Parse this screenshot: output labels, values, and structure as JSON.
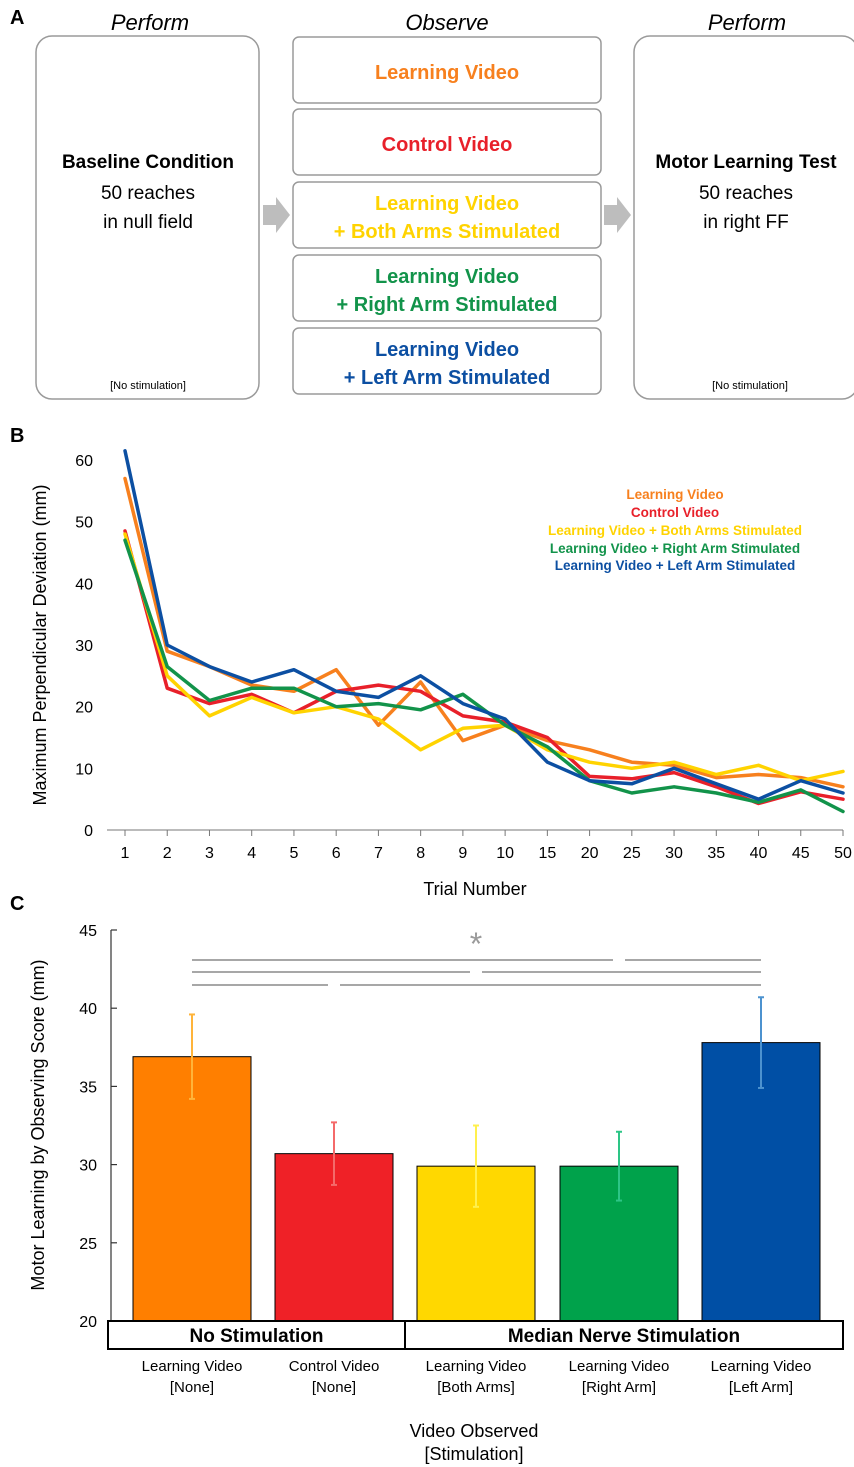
{
  "panels": {
    "a": {
      "letter": "A",
      "headers": [
        "Perform",
        "Observe",
        "Perform"
      ],
      "baseline": {
        "title": "Baseline Condition",
        "line1": "50 reaches",
        "line2": "in null field",
        "note": "[No stimulation]"
      },
      "test": {
        "title": "Motor Learning Test",
        "line1": "50 reaches",
        "line2": "in right FF",
        "note": "[No stimulation]"
      },
      "videos": [
        {
          "line1": "Learning Video",
          "line2": "",
          "color": "#F7801E"
        },
        {
          "line1": "Control Video",
          "line2": "",
          "color": "#E8202A"
        },
        {
          "line1": "Learning Video",
          "line2": "+ Both Arms Stimulated",
          "color": "#FFD300"
        },
        {
          "line1": "Learning Video",
          "line2": "+ Right Arm Stimulated",
          "color": "#12934A"
        },
        {
          "line1": "Learning Video",
          "line2": "+ Left Arm Stimulated",
          "color": "#0C4FA2"
        }
      ]
    },
    "b": {
      "letter": "B"
    },
    "c": {
      "letter": "C"
    }
  },
  "chart_data": [
    {
      "type": "line",
      "title": "",
      "xlabel": "Trial Number",
      "ylabel": "Maximum Perpendicular Deviation (mm)",
      "ylim": [
        0,
        60
      ],
      "yticks": [
        0,
        10,
        20,
        30,
        40,
        50,
        60
      ],
      "x": [
        "1",
        "2",
        "3",
        "4",
        "5",
        "6",
        "7",
        "8",
        "9",
        "10",
        "15",
        "20",
        "25",
        "30",
        "35",
        "40",
        "45",
        "50"
      ],
      "legend_position": "top-right",
      "grid": false,
      "series": [
        {
          "name": "Learning Video",
          "color": "#F7801E",
          "values": [
            57,
            29,
            26.5,
            23.5,
            22.5,
            26,
            17,
            24,
            14.5,
            17,
            14.5,
            13,
            11,
            10.5,
            8.5,
            9,
            8.5,
            7
          ]
        },
        {
          "name": "Control Video",
          "color": "#E8202A",
          "values": [
            48.5,
            23,
            20.5,
            22,
            19,
            22.5,
            23.5,
            22.5,
            18.5,
            17.5,
            15,
            8.7,
            8.3,
            9.3,
            7,
            4.3,
            6.2,
            5
          ]
        },
        {
          "name": "Learning Video + Both Arms Stimulated",
          "color": "#FFD300",
          "values": [
            48,
            25,
            18.5,
            21.5,
            19,
            20,
            18,
            13,
            16.5,
            17,
            13,
            11,
            10,
            11,
            9,
            10.5,
            8,
            9.5
          ]
        },
        {
          "name": "Learning Video + Right Arm Stimulated",
          "color": "#12934A",
          "values": [
            47,
            26.5,
            21,
            23,
            23,
            20,
            20.5,
            19.5,
            22,
            17,
            13.5,
            8,
            6,
            7,
            6,
            4.5,
            6.5,
            3
          ]
        },
        {
          "name": "Learning Video + Left Arm Stimulated",
          "color": "#0C4FA2",
          "values": [
            61.5,
            30,
            26.5,
            24,
            26,
            22.5,
            21.5,
            25,
            20.5,
            18,
            11,
            8,
            7.5,
            10,
            7.5,
            5,
            8,
            6
          ]
        }
      ]
    },
    {
      "type": "bar",
      "title": "",
      "xlabel": "Video Observed",
      "xlabel2": "[Stimulation]",
      "ylabel": "Motor Learning by Observing Score (mm)",
      "ylim": [
        20,
        45
      ],
      "yticks": [
        20,
        25,
        30,
        35,
        40,
        45
      ],
      "grid": false,
      "categories": [
        {
          "line1": "Learning Video",
          "line2": "[None]"
        },
        {
          "line1": "Control Video",
          "line2": "[None]"
        },
        {
          "line1": "Learning Video",
          "line2": "[Both Arms]"
        },
        {
          "line1": "Learning Video",
          "line2": "[Right Arm]"
        },
        {
          "line1": "Learning Video",
          "line2": "[Left Arm]"
        }
      ],
      "values": [
        36.9,
        30.7,
        29.9,
        29.9,
        37.8
      ],
      "error_upper": [
        39.6,
        32.7,
        32.5,
        32.1,
        40.7
      ],
      "error_lower": [
        34.2,
        28.7,
        27.3,
        27.7,
        34.9
      ],
      "bar_colors": [
        "#FF7F00",
        "#EF2127",
        "#FFD800",
        "#00A24B",
        "#004FA5"
      ],
      "error_colors": [
        "#FFB43A",
        "#F46A6A",
        "#FFF04D",
        "#2DC586",
        "#4C92CF"
      ],
      "groups": [
        {
          "label": "No Stimulation",
          "from": 0,
          "to": 1
        },
        {
          "label": "Median Nerve Stimulation",
          "from": 2,
          "to": 4
        }
      ],
      "significance": {
        "marker": "*",
        "lines": [
          {
            "from": 0,
            "to": 3
          },
          {
            "from": 0,
            "to": 2
          },
          {
            "from": 0,
            "to": 1
          },
          {
            "from": 3,
            "to": 4
          },
          {
            "from": 2,
            "to": 4
          },
          {
            "from": 1,
            "to": 4
          }
        ]
      }
    }
  ]
}
